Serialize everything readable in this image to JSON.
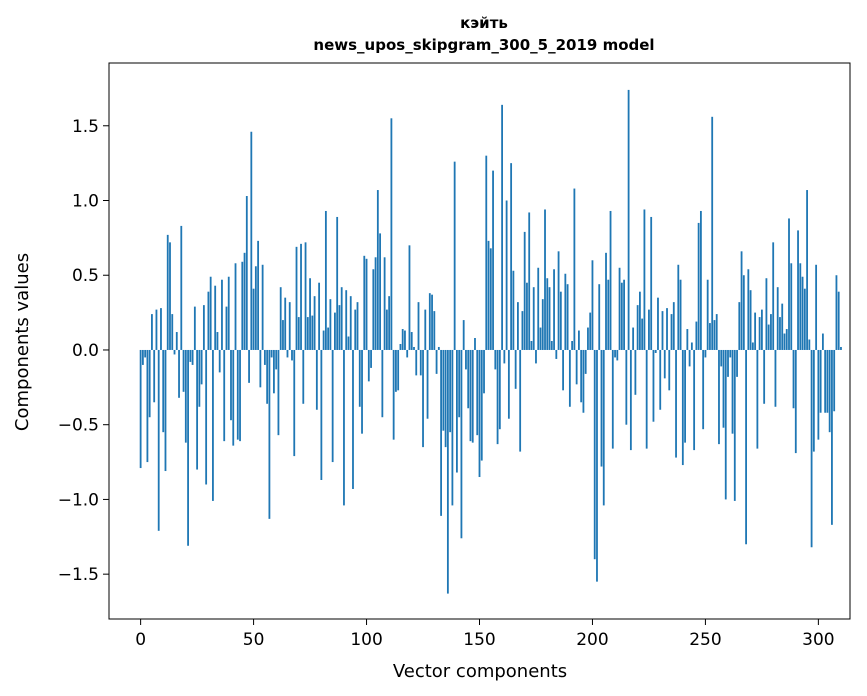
{
  "chart_data": {
    "type": "bar",
    "title": "кэйть",
    "subtitle": "news_upos_skipgram_300_5_2019 model",
    "xlabel": "Vector components",
    "ylabel": "Components values",
    "xlim": [
      -14,
      314
    ],
    "ylim": [
      -1.8,
      1.92
    ],
    "x_ticks": [
      0,
      50,
      100,
      150,
      200,
      250,
      300
    ],
    "y_ticks": [
      -1.5,
      -1.0,
      -0.5,
      0.0,
      0.5,
      1.0,
      1.5
    ],
    "x_tick_labels": [
      "0",
      "50",
      "100",
      "150",
      "200",
      "250",
      "300"
    ],
    "y_tick_labels": [
      "−1.5",
      "−1.0",
      "−0.5",
      "0.0",
      "0.5",
      "1.0",
      "1.5"
    ],
    "grid": false,
    "bar_color": "#1f77b4",
    "values": [
      -0.79,
      -0.1,
      -0.05,
      -0.75,
      -0.45,
      0.24,
      -0.35,
      0.27,
      -1.21,
      0.28,
      -0.55,
      -0.81,
      0.77,
      0.72,
      0.24,
      -0.03,
      0.12,
      -0.32,
      0.83,
      -0.28,
      -0.62,
      -1.31,
      -0.08,
      -0.1,
      0.29,
      -0.8,
      -0.38,
      -0.23,
      0.3,
      -0.9,
      0.39,
      0.49,
      -1.01,
      0.43,
      0.12,
      -0.15,
      0.47,
      -0.61,
      0.29,
      0.49,
      -0.47,
      -0.64,
      0.58,
      -0.6,
      -0.61,
      0.59,
      0.65,
      1.03,
      -0.22,
      1.46,
      0.41,
      0.56,
      0.73,
      -0.25,
      0.57,
      -0.1,
      -0.36,
      -1.13,
      -0.05,
      -0.29,
      -0.13,
      -0.57,
      0.42,
      0.2,
      0.35,
      -0.05,
      0.32,
      -0.07,
      -0.71,
      0.69,
      0.22,
      0.71,
      -0.36,
      0.72,
      0.22,
      0.48,
      0.23,
      0.36,
      -0.4,
      0.45,
      -0.87,
      0.13,
      0.93,
      0.15,
      0.34,
      -0.75,
      0.25,
      0.89,
      0.3,
      0.42,
      -1.04,
      0.4,
      0.09,
      0.36,
      -0.93,
      0.27,
      0.32,
      -0.38,
      -0.56,
      0.63,
      0.61,
      -0.21,
      -0.12,
      0.54,
      0.62,
      1.07,
      0.78,
      -0.45,
      0.62,
      0.27,
      0.36,
      1.55,
      -0.6,
      -0.28,
      -0.27,
      0.04,
      0.14,
      0.13,
      -0.05,
      0.7,
      0.12,
      0.02,
      -0.17,
      0.32,
      -0.17,
      -0.65,
      0.27,
      -0.46,
      0.38,
      0.37,
      0.26,
      -0.16,
      0.02,
      -1.11,
      -0.54,
      -0.65,
      -1.63,
      -0.55,
      -1.04,
      1.26,
      -0.82,
      -0.45,
      -1.26,
      0.2,
      -0.13,
      -0.39,
      -0.61,
      -0.62,
      0.08,
      -0.57,
      -0.85,
      -0.74,
      -0.29,
      1.3,
      0.73,
      0.68,
      1.2,
      -0.13,
      -0.63,
      -0.53,
      1.64,
      -0.09,
      1.0,
      -0.46,
      1.25,
      0.53,
      -0.26,
      0.32,
      -0.68,
      0.26,
      0.79,
      0.45,
      0.92,
      0.06,
      0.42,
      -0.09,
      0.55,
      0.15,
      0.34,
      0.94,
      0.48,
      0.42,
      0.06,
      0.54,
      -0.06,
      0.66,
      0.39,
      -0.27,
      0.51,
      0.44,
      -0.38,
      0.06,
      1.08,
      -0.23,
      0.13,
      -0.35,
      -0.42,
      -0.16,
      0.15,
      0.25,
      0.6,
      -1.4,
      -1.55,
      0.44,
      -0.78,
      -1.04,
      0.65,
      0.47,
      0.93,
      -0.66,
      -0.05,
      -0.07,
      0.55,
      0.45,
      0.47,
      -0.5,
      1.74,
      -0.67,
      0.15,
      -0.3,
      0.3,
      0.39,
      0.21,
      0.94,
      -0.66,
      0.27,
      0.89,
      -0.48,
      -0.02,
      0.35,
      -0.4,
      0.26,
      -0.19,
      0.28,
      -0.27,
      0.24,
      0.32,
      -0.72,
      0.57,
      0.47,
      -0.77,
      -0.62,
      0.14,
      -0.11,
      0.05,
      -0.67,
      0.19,
      0.85,
      0.93,
      -0.53,
      -0.05,
      0.47,
      0.18,
      1.56,
      0.2,
      0.24,
      -0.63,
      -0.11,
      -0.52,
      -1.0,
      -0.18,
      -0.05,
      -0.56,
      -1.01,
      -0.18,
      0.32,
      0.66,
      0.5,
      -1.3,
      0.54,
      0.4,
      0.05,
      0.25,
      -0.66,
      0.22,
      0.27,
      -0.36,
      0.48,
      0.17,
      0.24,
      0.72,
      -0.38,
      0.42,
      0.22,
      0.31,
      0.11,
      0.14,
      0.88,
      0.58,
      -0.39,
      -0.69,
      0.8,
      0.58,
      0.49,
      0.41,
      1.07,
      0.07,
      -1.32,
      -0.68,
      0.57,
      -0.6,
      -0.42,
      0.11,
      -0.42,
      -0.42,
      -0.55,
      -1.17,
      -0.41,
      0.5,
      0.39,
      0.02
    ]
  }
}
